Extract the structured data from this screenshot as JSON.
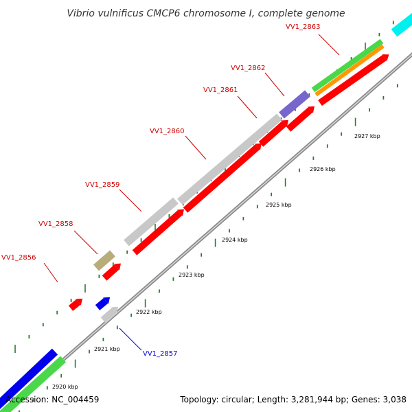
{
  "title": "Vibrio vulnificus CMCP6 chromosome I, complete genome",
  "footer": {
    "accession": "Accession: NC_004459",
    "summary": "Topology: circular; Length: 3,281,944 bp; Genes: 3,038"
  },
  "colors": {
    "background": "#ffffff",
    "backbone": "#999999",
    "tick": "#2a7a2a",
    "label_red": "#cc0000",
    "label_blue": "#0000cc",
    "red": "#ff0000",
    "grey": "#c8c8c8",
    "khaki": "#b8ac78",
    "blue": "#0000ee",
    "green": "#4ad84a",
    "orange": "#ff9900",
    "purple": "#7766cc",
    "cyan": "#00f0f0"
  },
  "scale": {
    "unit": "kbp",
    "ticks": [
      {
        "value": 2920,
        "label": "2920 kbp"
      },
      {
        "value": 2921,
        "label": "2921 kbp"
      },
      {
        "value": 2922,
        "label": "2922 kbp"
      },
      {
        "value": 2923,
        "label": "2923 kbp"
      },
      {
        "value": 2924,
        "label": "2924 kbp"
      },
      {
        "value": 2925,
        "label": "2925 kbp"
      },
      {
        "value": 2926,
        "label": "2926 kbp"
      },
      {
        "value": 2927,
        "label": "2927 kbp"
      }
    ]
  },
  "gene_labels": [
    {
      "name": "VV1_2856",
      "color": "red"
    },
    {
      "name": "VV1_2857",
      "color": "blue"
    },
    {
      "name": "VV1_2858",
      "color": "red"
    },
    {
      "name": "VV1_2859",
      "color": "red"
    },
    {
      "name": "VV1_2860",
      "color": "red"
    },
    {
      "name": "VV1_2861",
      "color": "red"
    },
    {
      "name": "VV1_2862",
      "color": "red"
    },
    {
      "name": "VV1_2863",
      "color": "red"
    }
  ]
}
